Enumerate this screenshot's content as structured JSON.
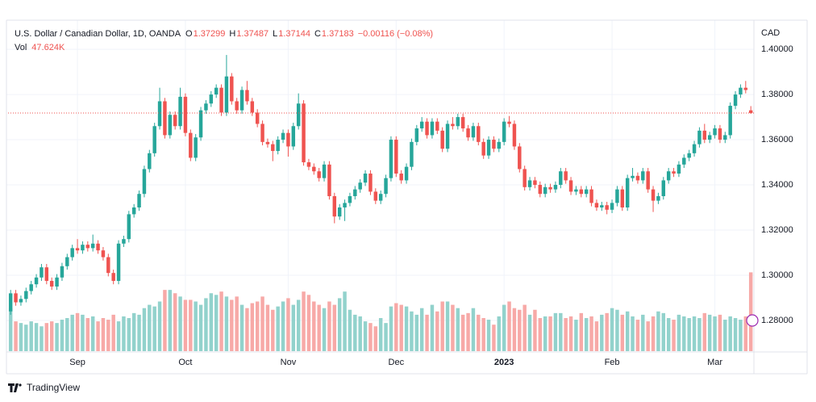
{
  "chart_data": {
    "type": "candlestick",
    "title": "U.S. Dollar / Canadian Dollar, 1D, OANDA",
    "ohlc_labels": [
      "O",
      "H",
      "L",
      "C"
    ],
    "change_label": "−0.00116 (−0.08%)",
    "volume_title": "Vol",
    "volume_last_label": "47.624K",
    "currency": "CAD",
    "brand": "TradingView",
    "up_color": "#26a69a",
    "down_color": "#ef5350",
    "volume_up_color": "#92d2cc",
    "volume_down_color": "#f7a9a7",
    "grid": true,
    "xlim": [
      -0.5,
      144.6
    ],
    "xticks": [
      {
        "value": 13,
        "label": "Sep"
      },
      {
        "value": 34,
        "label": "Oct"
      },
      {
        "value": 54,
        "label": "Nov"
      },
      {
        "value": 75,
        "label": "Dec"
      },
      {
        "value": 96,
        "label": "2023"
      },
      {
        "value": 117,
        "label": "Feb"
      },
      {
        "value": 137,
        "label": "Mar"
      }
    ],
    "ylim": [
      1.2664,
      1.4129
    ],
    "yticks": [
      {
        "value": 1.28,
        "label": "1.28000"
      },
      {
        "value": 1.3,
        "label": "1.30000"
      },
      {
        "value": 1.32,
        "label": "1.32000"
      },
      {
        "value": 1.34,
        "label": "1.34000"
      },
      {
        "value": 1.36,
        "label": "1.36000"
      },
      {
        "value": 1.38,
        "label": "1.38000"
      },
      {
        "value": 1.4,
        "label": "1.40000"
      }
    ],
    "volume_ylim": [
      0,
      200
    ],
    "open": [
      1.284,
      1.292,
      1.288,
      1.2895,
      1.293,
      1.296,
      1.299,
      1.3035,
      1.2975,
      1.295,
      1.299,
      1.304,
      1.308,
      1.312,
      1.311,
      1.3135,
      1.312,
      1.314,
      1.311,
      1.308,
      1.301,
      1.2975,
      1.314,
      1.316,
      1.327,
      1.33,
      1.336,
      1.347,
      1.354,
      1.366,
      1.377,
      1.362,
      1.371,
      1.366,
      1.379,
      1.363,
      1.352,
      1.361,
      1.373,
      1.376,
      1.38,
      1.383,
      1.372,
      1.388,
      1.377,
      1.373,
      1.382,
      1.377,
      1.372,
      1.367,
      1.359,
      1.358,
      1.355,
      1.36,
      1.363,
      1.357,
      1.366,
      1.376,
      1.35,
      1.348,
      1.346,
      1.343,
      1.349,
      1.335,
      1.326,
      1.33,
      1.332,
      1.335,
      1.338,
      1.341,
      1.345,
      1.337,
      1.333,
      1.336,
      1.343,
      1.36,
      1.345,
      1.342,
      1.348,
      1.359,
      1.365,
      1.368,
      1.362,
      1.368,
      1.364,
      1.356,
      1.367,
      1.366,
      1.37,
      1.365,
      1.361,
      1.366,
      1.359,
      1.353,
      1.36,
      1.356,
      1.359,
      1.368,
      1.367,
      1.357,
      1.347,
      1.339,
      1.342,
      1.34,
      1.336,
      1.339,
      1.338,
      1.34,
      1.346,
      1.342,
      1.337,
      1.338,
      1.336,
      1.338,
      1.332,
      1.33,
      1.331,
      1.329,
      1.332,
      1.338,
      1.33,
      1.343,
      1.344,
      1.342,
      1.346,
      1.338,
      1.333,
      1.335,
      1.342,
      1.346,
      1.345,
      1.349,
      1.352,
      1.354,
      1.358,
      1.364,
      1.36,
      1.362,
      1.365,
      1.36,
      1.362,
      1.375,
      1.38,
      1.383,
      1.37299
    ],
    "high": [
      1.2935,
      1.2935,
      1.291,
      1.2945,
      1.2975,
      1.3005,
      1.305,
      1.305,
      1.299,
      1.3005,
      1.3055,
      1.3095,
      1.3135,
      1.316,
      1.315,
      1.315,
      1.318,
      1.3155,
      1.3125,
      1.3095,
      1.3025,
      1.3155,
      1.3175,
      1.3285,
      1.3315,
      1.3375,
      1.3485,
      1.3555,
      1.3675,
      1.383,
      1.3785,
      1.3725,
      1.3725,
      1.383,
      1.3805,
      1.3645,
      1.3625,
      1.3745,
      1.3775,
      1.3815,
      1.3845,
      1.3845,
      1.3975,
      1.3895,
      1.3785,
      1.3835,
      1.386,
      1.3785,
      1.3735,
      1.3685,
      1.3605,
      1.3595,
      1.3615,
      1.3645,
      1.3645,
      1.3675,
      1.3805,
      1.3775,
      1.3515,
      1.3495,
      1.3475,
      1.3505,
      1.3505,
      1.3365,
      1.3315,
      1.3335,
      1.3365,
      1.3395,
      1.3425,
      1.3465,
      1.3465,
      1.3385,
      1.3375,
      1.3445,
      1.3615,
      1.3615,
      1.3465,
      1.3495,
      1.3605,
      1.3665,
      1.37,
      1.3695,
      1.3695,
      1.3695,
      1.3655,
      1.3685,
      1.37,
      1.3715,
      1.3715,
      1.3665,
      1.3675,
      1.3675,
      1.3605,
      1.3615,
      1.3615,
      1.3605,
      1.3695,
      1.3705,
      1.3685,
      1.3585,
      1.3485,
      1.3435,
      1.3435,
      1.3415,
      1.3405,
      1.3405,
      1.3415,
      1.3475,
      1.3475,
      1.3435,
      1.3395,
      1.3395,
      1.3395,
      1.3395,
      1.3335,
      1.3325,
      1.3325,
      1.3335,
      1.3395,
      1.3395,
      1.3445,
      1.3475,
      1.3455,
      1.3475,
      1.3475,
      1.3395,
      1.3365,
      1.3435,
      1.3475,
      1.3475,
      1.3505,
      1.3535,
      1.3555,
      1.3595,
      1.3655,
      1.367,
      1.3635,
      1.3665,
      1.3665,
      1.3635,
      1.3765,
      1.3815,
      1.3845,
      1.386,
      1.37487
    ],
    "low": [
      1.2825,
      1.2865,
      1.2865,
      1.288,
      1.2915,
      1.2945,
      1.2975,
      1.296,
      1.2935,
      1.2935,
      1.2975,
      1.3025,
      1.3065,
      1.3095,
      1.3095,
      1.3105,
      1.3105,
      1.3095,
      1.3065,
      1.2995,
      1.296,
      1.296,
      1.3125,
      1.3145,
      1.3255,
      1.3285,
      1.3345,
      1.3455,
      1.3525,
      1.3645,
      1.3605,
      1.3605,
      1.3645,
      1.3645,
      1.3615,
      1.3505,
      1.3505,
      1.3595,
      1.3715,
      1.3745,
      1.3785,
      1.3705,
      1.3705,
      1.3755,
      1.3715,
      1.3715,
      1.3755,
      1.3705,
      1.3655,
      1.3575,
      1.3565,
      1.3505,
      1.3535,
      1.3585,
      1.3525,
      1.3555,
      1.3645,
      1.3485,
      1.3465,
      1.3445,
      1.3415,
      1.3415,
      1.3335,
      1.323,
      1.3245,
      1.324,
      1.3305,
      1.3335,
      1.3365,
      1.3395,
      1.3355,
      1.3315,
      1.3315,
      1.3345,
      1.3415,
      1.3435,
      1.3405,
      1.3405,
      1.3465,
      1.3575,
      1.3635,
      1.3605,
      1.3605,
      1.3625,
      1.3545,
      1.3545,
      1.3645,
      1.3645,
      1.3635,
      1.3595,
      1.3595,
      1.3575,
      1.3515,
      1.3515,
      1.3545,
      1.3545,
      1.3575,
      1.3655,
      1.3555,
      1.3455,
      1.3375,
      1.3375,
      1.3385,
      1.3345,
      1.3345,
      1.3365,
      1.3365,
      1.3385,
      1.3405,
      1.3355,
      1.3355,
      1.3345,
      1.3345,
      1.3305,
      1.3285,
      1.3285,
      1.327,
      1.3275,
      1.3305,
      1.3285,
      1.3285,
      1.3415,
      1.3405,
      1.3405,
      1.3365,
      1.328,
      1.3315,
      1.3335,
      1.3405,
      1.3435,
      1.3435,
      1.3475,
      1.3505,
      1.3525,
      1.3565,
      1.3585,
      1.3585,
      1.3605,
      1.3585,
      1.3585,
      1.3605,
      1.3735,
      1.3785,
      1.3805,
      1.37144
    ],
    "close": [
      1.292,
      1.288,
      1.2895,
      1.293,
      1.296,
      1.299,
      1.3035,
      1.2975,
      1.295,
      1.299,
      1.304,
      1.308,
      1.312,
      1.311,
      1.3135,
      1.312,
      1.314,
      1.311,
      1.308,
      1.301,
      1.2975,
      1.314,
      1.316,
      1.327,
      1.33,
      1.336,
      1.347,
      1.354,
      1.366,
      1.377,
      1.362,
      1.371,
      1.366,
      1.379,
      1.363,
      1.352,
      1.361,
      1.373,
      1.376,
      1.38,
      1.383,
      1.372,
      1.388,
      1.377,
      1.373,
      1.382,
      1.377,
      1.372,
      1.367,
      1.359,
      1.358,
      1.355,
      1.36,
      1.363,
      1.357,
      1.366,
      1.376,
      1.35,
      1.348,
      1.346,
      1.343,
      1.349,
      1.335,
      1.326,
      1.33,
      1.332,
      1.335,
      1.338,
      1.341,
      1.345,
      1.337,
      1.333,
      1.336,
      1.343,
      1.36,
      1.345,
      1.342,
      1.348,
      1.359,
      1.365,
      1.368,
      1.362,
      1.368,
      1.364,
      1.356,
      1.367,
      1.366,
      1.37,
      1.365,
      1.361,
      1.366,
      1.359,
      1.353,
      1.36,
      1.356,
      1.359,
      1.368,
      1.367,
      1.357,
      1.347,
      1.339,
      1.342,
      1.34,
      1.336,
      1.339,
      1.338,
      1.34,
      1.346,
      1.342,
      1.337,
      1.338,
      1.336,
      1.338,
      1.332,
      1.33,
      1.331,
      1.329,
      1.332,
      1.338,
      1.33,
      1.343,
      1.344,
      1.342,
      1.346,
      1.338,
      1.333,
      1.335,
      1.342,
      1.346,
      1.345,
      1.349,
      1.352,
      1.354,
      1.358,
      1.364,
      1.36,
      1.362,
      1.365,
      1.36,
      1.362,
      1.375,
      1.38,
      1.383,
      1.382,
      1.37183
    ],
    "volume": [
      26,
      18,
      17,
      16,
      18,
      17,
      15,
      17,
      18,
      17,
      19,
      20,
      22,
      23,
      22,
      20,
      21,
      18,
      20,
      19,
      22,
      18,
      21,
      20,
      23,
      22,
      26,
      28,
      27,
      30,
      37,
      37,
      35,
      33,
      31,
      31,
      30,
      28,
      32,
      35,
      34,
      36,
      33,
      31,
      33,
      28,
      26,
      29,
      30,
      33,
      28,
      25,
      27,
      30,
      32,
      28,
      31,
      36,
      34,
      30,
      28,
      26,
      30,
      28,
      32,
      36,
      25,
      22,
      21,
      18,
      17,
      15,
      20,
      17,
      27,
      29,
      28,
      27,
      24,
      22,
      26,
      22,
      28,
      24,
      30,
      30,
      28,
      26,
      22,
      23,
      26,
      22,
      20,
      19,
      16,
      21,
      28,
      30,
      26,
      25,
      28,
      22,
      25,
      20,
      21,
      21,
      23,
      23,
      20,
      21,
      19,
      23,
      20,
      21,
      18,
      22,
      23,
      26,
      25,
      22,
      24,
      21,
      19,
      22,
      18,
      21,
      24,
      23,
      20,
      19,
      22,
      21,
      20,
      21,
      20,
      23,
      22,
      21,
      22,
      19,
      21,
      20,
      19,
      21,
      47.624
    ]
  }
}
